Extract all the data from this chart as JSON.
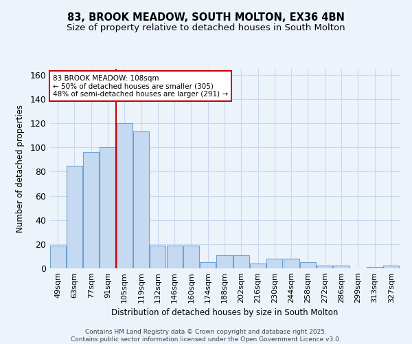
{
  "title": "83, BROOK MEADOW, SOUTH MOLTON, EX36 4BN",
  "subtitle": "Size of property relative to detached houses in South Molton",
  "xlabel": "Distribution of detached houses by size in South Molton",
  "ylabel": "Number of detached properties",
  "categories": [
    "49sqm",
    "63sqm",
    "77sqm",
    "91sqm",
    "105sqm",
    "119sqm",
    "132sqm",
    "146sqm",
    "160sqm",
    "174sqm",
    "188sqm",
    "202sqm",
    "216sqm",
    "230sqm",
    "244sqm",
    "258sqm",
    "272sqm",
    "286sqm",
    "299sqm",
    "313sqm",
    "327sqm"
  ],
  "values": [
    19,
    85,
    96,
    100,
    120,
    113,
    19,
    19,
    19,
    5,
    11,
    11,
    4,
    8,
    8,
    5,
    2,
    2,
    0,
    1,
    2
  ],
  "bar_color": "#c5d9f1",
  "bar_edge_color": "#6ba3d6",
  "vline_index": 4,
  "vline_color": "#cc0000",
  "annotation_text": "83 BROOK MEADOW: 108sqm\n← 50% of detached houses are smaller (305)\n48% of semi-detached houses are larger (291) →",
  "annotation_box_color": "white",
  "annotation_box_edge": "#cc0000",
  "ylim": [
    0,
    165
  ],
  "yticks": [
    0,
    20,
    40,
    60,
    80,
    100,
    120,
    140,
    160
  ],
  "background_color": "#edf3fb",
  "grid_color": "#c8d8ee",
  "footer": "Contains HM Land Registry data © Crown copyright and database right 2025.\nContains public sector information licensed under the Open Government Licence v3.0.",
  "title_fontsize": 10.5,
  "subtitle_fontsize": 9.5,
  "ylabel_fontsize": 8.5,
  "xlabel_fontsize": 8.5,
  "tick_fontsize": 8,
  "annotation_fontsize": 7.5,
  "footer_fontsize": 6.5
}
